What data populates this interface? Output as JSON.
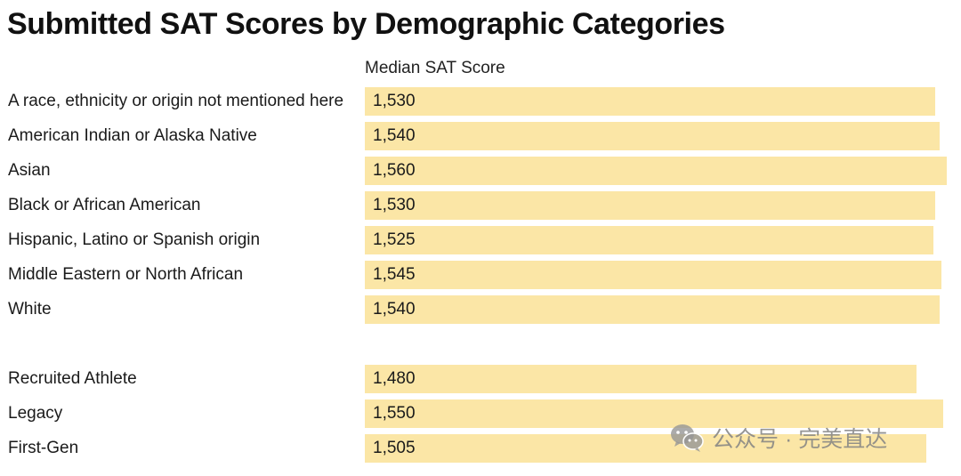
{
  "chart_data": {
    "type": "bar",
    "orientation": "horizontal",
    "title": "Submitted SAT Scores by Demographic Categories",
    "value_header": "Median SAT Score",
    "groups": [
      {
        "categories": [
          "A race, ethnicity or origin not mentioned here",
          "American Indian or Alaska Native",
          "Asian",
          "Black or African American",
          "Hispanic, Latino or Spanish origin",
          "Middle Eastern or North African",
          "White"
        ],
        "values": [
          1530,
          1540,
          1560,
          1530,
          1525,
          1545,
          1540
        ],
        "labels": [
          "1,530",
          "1,540",
          "1,560",
          "1,530",
          "1,525",
          "1,545",
          "1,540"
        ]
      },
      {
        "categories": [
          "Recruited Athlete",
          "Legacy",
          "First-Gen"
        ],
        "values": [
          1480,
          1550,
          1505
        ],
        "labels": [
          "1,480",
          "1,550",
          "1,505"
        ]
      }
    ],
    "xlim": [
      0,
      1560
    ],
    "bar_color": "#fbe6a6",
    "grid": false,
    "legend": "none"
  },
  "watermark": {
    "icon": "wechat-icon",
    "text": "公众号 · 完美直达"
  }
}
